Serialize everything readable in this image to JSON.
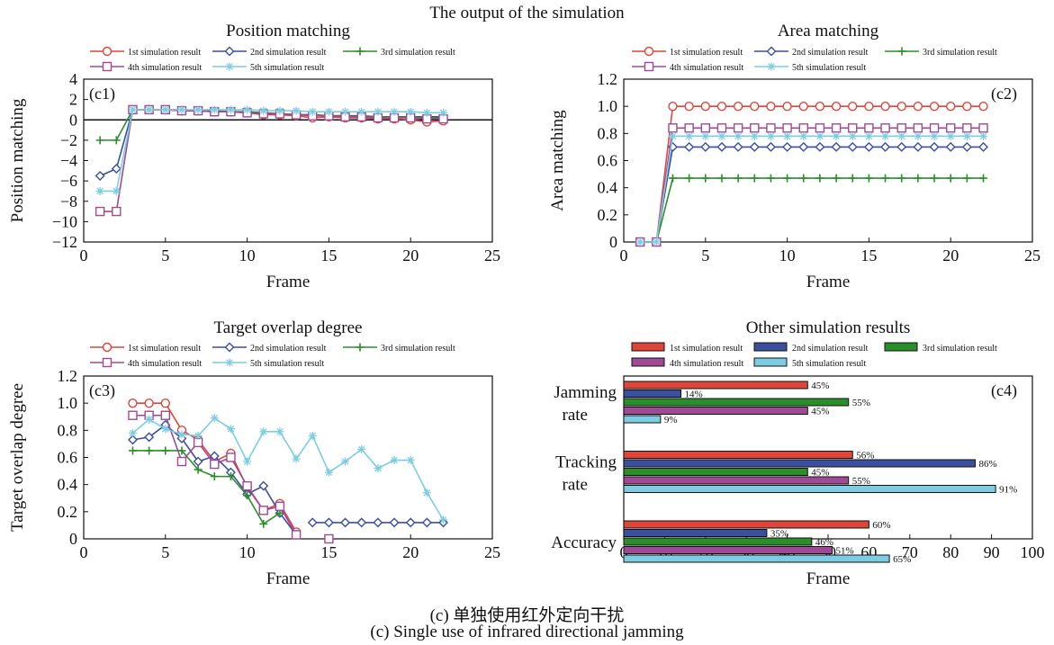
{
  "overall_title": "The output of the simulation",
  "caption_cn": "(c) 单独使用红外定向干扰",
  "caption_en": "(c) Single use of infrared directional jamming",
  "series_colors": [
    "#e0453a",
    "#3b4fa0",
    "#2a8f2a",
    "#a04a96",
    "#7ccde3"
  ],
  "chart_data": [
    {
      "id": "c1",
      "type": "line",
      "title": "Position matching",
      "panel_label": "(c1)",
      "xlabel": "Frame",
      "ylabel": "Position matching",
      "xlim": [
        0,
        25
      ],
      "xticks": [
        0,
        5,
        10,
        15,
        20,
        25
      ],
      "ylim": [
        -12,
        4
      ],
      "yticks": [
        -12,
        -10,
        -8,
        -6,
        -4,
        -2,
        0,
        2,
        4
      ],
      "zero_line": true,
      "series": [
        {
          "name": "1st simulation result",
          "marker": "circle",
          "x": [
            1,
            2,
            3,
            4,
            5,
            6,
            7,
            8,
            9,
            10,
            11,
            12,
            13,
            14,
            15,
            16,
            17,
            18,
            19,
            20,
            21,
            22
          ],
          "y": [
            null,
            null,
            1,
            1,
            1,
            0.9,
            0.9,
            0.8,
            0.8,
            0.7,
            0.5,
            0.5,
            0.4,
            0.2,
            0.3,
            0.2,
            0.2,
            0.1,
            0.1,
            0.0,
            -0.2,
            -0.1
          ]
        },
        {
          "name": "2nd simulation result",
          "marker": "diamond",
          "x": [
            1,
            2,
            3,
            4,
            5,
            6,
            7,
            8,
            9,
            10,
            11,
            12,
            13,
            14,
            15,
            16,
            17,
            18,
            19,
            20,
            21,
            22
          ],
          "y": [
            -5.5,
            -4.8,
            1,
            1,
            1,
            0.9,
            0.9,
            0.8,
            0.8,
            0.7,
            0.6,
            0.6,
            0.5,
            0.5,
            0.4,
            0.4,
            0.4,
            0.3,
            0.3,
            0.3,
            0.3,
            0.3
          ]
        },
        {
          "name": "3rd simulation result",
          "marker": "plus",
          "x": [
            1,
            2,
            3,
            4,
            5,
            6,
            7,
            8,
            9,
            10,
            11,
            12,
            13,
            14,
            15,
            16,
            17,
            18,
            19,
            20,
            21,
            22
          ],
          "y": [
            -2,
            -2,
            1,
            1,
            1,
            1,
            0.9,
            0.9,
            0.8,
            0.8,
            0.7,
            0.6,
            0.5,
            0.5,
            0.4,
            0.4,
            0.3,
            0.3,
            0.3,
            0.3,
            0.2,
            0.2
          ]
        },
        {
          "name": "4th simulation result",
          "marker": "square",
          "x": [
            1,
            2,
            3,
            4,
            5,
            6,
            7,
            8,
            9,
            10,
            11,
            12,
            13,
            14,
            15,
            16,
            17,
            18,
            19,
            20,
            21,
            22
          ],
          "y": [
            -9,
            -9,
            1,
            1,
            1,
            0.9,
            0.9,
            0.8,
            0.8,
            0.7,
            0.6,
            0.6,
            0.5,
            0.4,
            0.4,
            0.3,
            0.3,
            0.2,
            0.2,
            0.2,
            0.1,
            0.1
          ]
        },
        {
          "name": "5th simulation result",
          "marker": "asterisk",
          "x": [
            1,
            2,
            3,
            4,
            5,
            6,
            7,
            8,
            9,
            10,
            11,
            12,
            13,
            14,
            15,
            16,
            17,
            18,
            19,
            20,
            21,
            22
          ],
          "y": [
            -7,
            -7,
            1,
            1,
            1,
            1,
            1,
            1,
            1,
            1,
            0.9,
            0.9,
            0.9,
            0.8,
            0.8,
            0.8,
            0.8,
            0.8,
            0.8,
            0.8,
            0.7,
            0.7
          ]
        }
      ]
    },
    {
      "id": "c2",
      "type": "line",
      "title": "Area matching",
      "panel_label": "(c2)",
      "xlabel": "Frame",
      "ylabel": "Area matching",
      "xlim": [
        0,
        25
      ],
      "xticks": [
        0,
        5,
        10,
        15,
        20,
        25
      ],
      "ylim": [
        0,
        1.2
      ],
      "yticks": [
        0,
        0.2,
        0.4,
        0.6,
        0.8,
        1.0,
        1.2
      ],
      "ytick_labels": [
        "0",
        "0.2",
        "0.4",
        "0.6",
        "0.8",
        "1.0",
        "1.2"
      ],
      "series": [
        {
          "name": "1st simulation result",
          "marker": "circle",
          "x": [
            1,
            2,
            3,
            4,
            5,
            6,
            7,
            8,
            9,
            10,
            11,
            12,
            13,
            14,
            15,
            16,
            17,
            18,
            19,
            20,
            21,
            22
          ],
          "y": [
            0,
            0,
            1,
            1,
            1,
            1,
            1,
            1,
            1,
            1,
            1,
            1,
            1,
            1,
            1,
            1,
            1,
            1,
            1,
            1,
            1,
            1
          ]
        },
        {
          "name": "2nd simulation result",
          "marker": "diamond",
          "x": [
            1,
            2,
            3,
            4,
            5,
            6,
            7,
            8,
            9,
            10,
            11,
            12,
            13,
            14,
            15,
            16,
            17,
            18,
            19,
            20,
            21,
            22
          ],
          "y": [
            0,
            0,
            0.7,
            0.7,
            0.7,
            0.7,
            0.7,
            0.7,
            0.7,
            0.7,
            0.7,
            0.7,
            0.7,
            0.7,
            0.7,
            0.7,
            0.7,
            0.7,
            0.7,
            0.7,
            0.7,
            0.7
          ]
        },
        {
          "name": "3rd simulation result",
          "marker": "plus",
          "x": [
            1,
            2,
            3,
            4,
            5,
            6,
            7,
            8,
            9,
            10,
            11,
            12,
            13,
            14,
            15,
            16,
            17,
            18,
            19,
            20,
            21,
            22
          ],
          "y": [
            0,
            0,
            0.47,
            0.47,
            0.47,
            0.47,
            0.47,
            0.47,
            0.47,
            0.47,
            0.47,
            0.47,
            0.47,
            0.47,
            0.47,
            0.47,
            0.47,
            0.47,
            0.47,
            0.47,
            0.47,
            0.47
          ]
        },
        {
          "name": "4th simulation result",
          "marker": "square",
          "x": [
            1,
            2,
            3,
            4,
            5,
            6,
            7,
            8,
            9,
            10,
            11,
            12,
            13,
            14,
            15,
            16,
            17,
            18,
            19,
            20,
            21,
            22
          ],
          "y": [
            0,
            0,
            0.84,
            0.84,
            0.84,
            0.84,
            0.84,
            0.84,
            0.84,
            0.84,
            0.84,
            0.84,
            0.84,
            0.84,
            0.84,
            0.84,
            0.84,
            0.84,
            0.84,
            0.84,
            0.84,
            0.84
          ]
        },
        {
          "name": "5th simulation result",
          "marker": "asterisk",
          "x": [
            1,
            2,
            3,
            4,
            5,
            6,
            7,
            8,
            9,
            10,
            11,
            12,
            13,
            14,
            15,
            16,
            17,
            18,
            19,
            20,
            21,
            22
          ],
          "y": [
            0,
            0,
            0.78,
            0.78,
            0.78,
            0.78,
            0.78,
            0.78,
            0.78,
            0.78,
            0.78,
            0.78,
            0.78,
            0.78,
            0.78,
            0.78,
            0.78,
            0.78,
            0.78,
            0.78,
            0.78,
            0.78
          ]
        }
      ]
    },
    {
      "id": "c3",
      "type": "line",
      "title": "Target overlap degree",
      "panel_label": "(c3)",
      "xlabel": "Frame",
      "ylabel": "Target overlap degree",
      "xlim": [
        0,
        25
      ],
      "xticks": [
        0,
        5,
        10,
        15,
        20,
        25
      ],
      "ylim": [
        0,
        1.2
      ],
      "yticks": [
        0,
        0.2,
        0.4,
        0.6,
        0.8,
        1.0,
        1.2
      ],
      "ytick_labels": [
        "0",
        "0.2",
        "0.4",
        "0.6",
        "0.8",
        "1.0",
        "1.2"
      ],
      "series": [
        {
          "name": "1st simulation result",
          "marker": "circle",
          "x": [
            3,
            4,
            5,
            6,
            7,
            8,
            9,
            10,
            11,
            12,
            13
          ],
          "y": [
            1.0,
            1.0,
            1.0,
            0.8,
            0.73,
            0.57,
            0.63,
            0.38,
            0.21,
            0.26,
            0.05
          ]
        },
        {
          "name": "2nd simulation result",
          "marker": "diamond",
          "x": [
            3,
            4,
            5,
            6,
            7,
            8,
            9,
            10,
            11,
            12,
            13,
            null,
            14,
            15,
            16,
            17,
            18,
            19,
            20,
            21,
            22
          ],
          "y": [
            0.73,
            0.75,
            0.84,
            0.74,
            0.57,
            0.61,
            0.49,
            0.33,
            0.39,
            0.19,
            0.03,
            null,
            0.12,
            0.12,
            0.12,
            0.12,
            0.12,
            0.12,
            0.12,
            0.12,
            0.12
          ]
        },
        {
          "name": "3rd simulation result",
          "marker": "plus",
          "x": [
            3,
            4,
            5,
            6,
            7,
            8,
            9,
            10,
            11,
            12
          ],
          "y": [
            0.65,
            0.65,
            0.65,
            0.65,
            0.51,
            0.46,
            0.46,
            0.32,
            0.11,
            0.19
          ]
        },
        {
          "name": "4th simulation result",
          "marker": "square",
          "x": [
            3,
            4,
            5,
            6,
            7,
            8,
            9,
            10,
            11,
            12,
            13,
            null,
            15
          ],
          "y": [
            0.91,
            0.91,
            0.91,
            0.57,
            0.71,
            0.55,
            0.6,
            0.39,
            0.21,
            0.24,
            0.03,
            null,
            0.0
          ]
        },
        {
          "name": "5th simulation result",
          "marker": "asterisk",
          "x": [
            3,
            4,
            5,
            6,
            7,
            8,
            9,
            10,
            11,
            12,
            13,
            14,
            15,
            16,
            17,
            18,
            19,
            20,
            21,
            22
          ],
          "y": [
            0.78,
            0.88,
            0.81,
            0.77,
            0.76,
            0.89,
            0.81,
            0.57,
            0.79,
            0.79,
            0.59,
            0.76,
            0.49,
            0.57,
            0.66,
            0.52,
            0.58,
            0.58,
            0.34,
            0.14
          ]
        }
      ]
    },
    {
      "id": "c4",
      "type": "bar",
      "orientation": "horizontal",
      "title": "Other simulation results",
      "panel_label": "(c4)",
      "xlabel": "Frame",
      "xlim": [
        0,
        100
      ],
      "xticks": [
        0,
        10,
        20,
        30,
        40,
        50,
        60,
        70,
        80,
        90,
        100
      ],
      "categories": [
        [
          "Jamming",
          "rate"
        ],
        [
          "Tracking",
          "rate"
        ],
        [
          "Accuracy"
        ]
      ],
      "series": [
        {
          "name": "1st simulation result",
          "values": [
            45,
            56,
            60
          ],
          "labels": [
            "45%",
            "56%",
            "60%"
          ]
        },
        {
          "name": "2nd simulation result",
          "values": [
            14,
            86,
            35
          ],
          "labels": [
            "14%",
            "86%",
            "35%"
          ]
        },
        {
          "name": "3rd simulation result",
          "values": [
            55,
            45,
            46
          ],
          "labels": [
            "55%",
            "45%",
            "46%"
          ]
        },
        {
          "name": "4th simulation result",
          "values": [
            45,
            55,
            51
          ],
          "labels": [
            "45%",
            "55%",
            "51%"
          ]
        },
        {
          "name": "5th simulation result",
          "values": [
            9,
            91,
            65
          ],
          "labels": [
            "9%",
            "91%",
            "65%"
          ]
        }
      ]
    }
  ]
}
